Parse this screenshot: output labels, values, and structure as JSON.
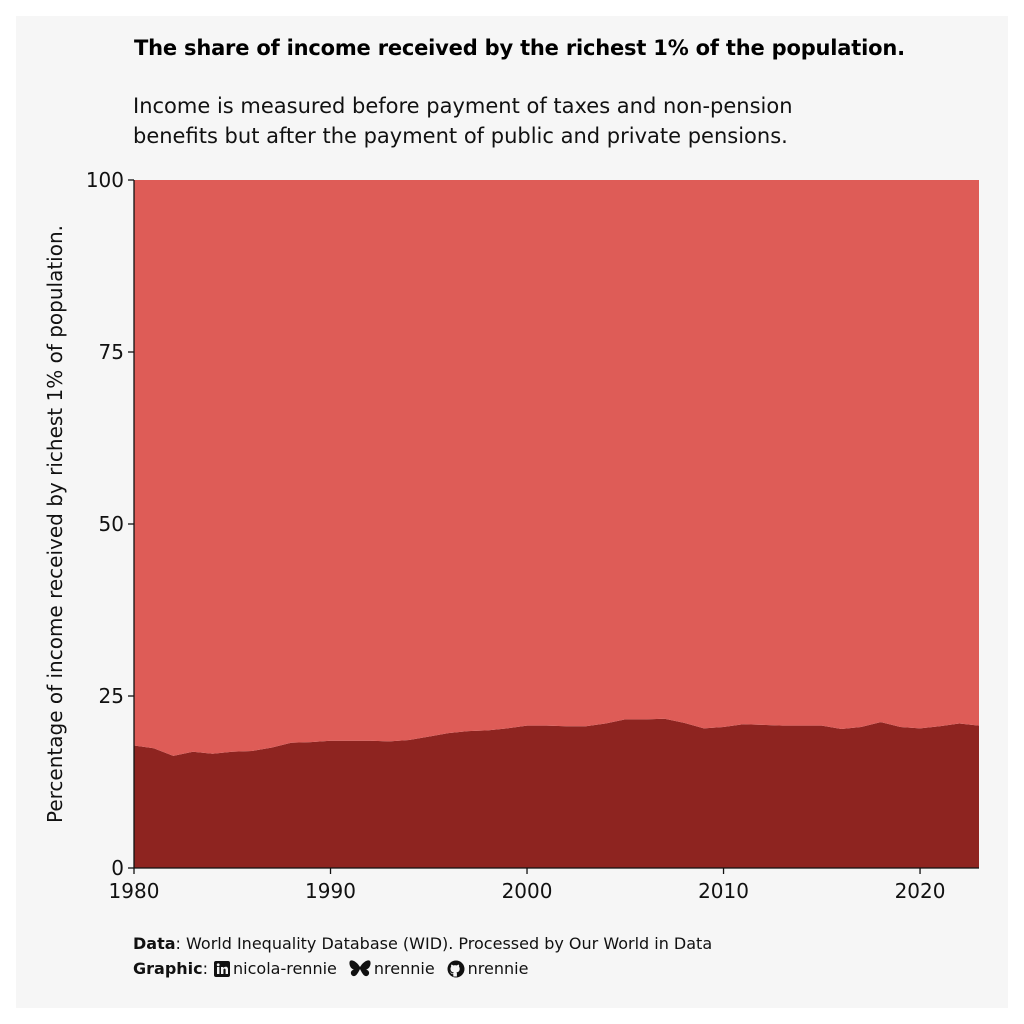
{
  "title": "The share of income received by the richest 1% of the population.",
  "subtitle_lines": [
    "Income is measured before payment of taxes and non-pension",
    "benefits but after the payment of public and private pensions."
  ],
  "caption": {
    "data_label": "Data",
    "data_text": "World Inequality Database (WID). Processed by Our World in Data",
    "graphic_label": "Graphic",
    "linkedin": "nicola-rennie",
    "bluesky": "nrennie",
    "github": "nrennie"
  },
  "colors": {
    "panel_bg": "#f6f6f6",
    "rest": "#de5c57",
    "top1": "#8e2420"
  },
  "icons": [
    "linkedin-icon",
    "butterfly-icon",
    "github-icon"
  ],
  "chart_data": {
    "type": "area",
    "stacked": true,
    "xlabel": "",
    "ylabel": "Percentage of income received by richest 1% of population.",
    "xlim": [
      1980,
      2023
    ],
    "ylim": [
      0,
      100
    ],
    "xticks": [
      1980,
      1990,
      2000,
      2010,
      2020
    ],
    "yticks": [
      0,
      25,
      50,
      75,
      100
    ],
    "grid": false,
    "x": [
      1980,
      1981,
      1982,
      1983,
      1984,
      1985,
      1986,
      1987,
      1988,
      1989,
      1990,
      1991,
      1992,
      1993,
      1994,
      1995,
      1996,
      1997,
      1998,
      1999,
      2000,
      2001,
      2002,
      2003,
      2004,
      2005,
      2006,
      2007,
      2008,
      2009,
      2010,
      2011,
      2012,
      2013,
      2014,
      2015,
      2016,
      2017,
      2018,
      2019,
      2020,
      2021,
      2022,
      2023
    ],
    "series": [
      {
        "values": [
          17.8,
          17.4,
          16.3,
          16.9,
          16.6,
          16.9,
          17.0,
          17.5,
          18.2,
          18.3,
          18.5,
          18.5,
          18.5,
          18.4,
          18.6,
          19.1,
          19.6,
          19.9,
          20.0,
          20.3,
          20.7,
          20.7,
          20.6,
          20.6,
          21.0,
          21.6,
          21.6,
          21.7,
          21.1,
          20.3,
          20.5,
          20.9,
          20.8,
          20.7,
          20.7,
          20.7,
          20.2,
          20.5,
          21.2,
          20.5,
          20.3,
          20.6,
          21.0,
          20.7
        ]
      },
      {
        "values": [
          82.2,
          82.6,
          83.7,
          83.1,
          83.4,
          83.1,
          83.0,
          82.5,
          81.8,
          81.7,
          81.5,
          81.5,
          81.5,
          81.6,
          81.4,
          80.9,
          80.4,
          80.1,
          80.0,
          79.7,
          79.3,
          79.3,
          79.4,
          79.4,
          79.0,
          78.4,
          78.4,
          78.3,
          78.9,
          79.7,
          79.5,
          79.1,
          79.2,
          79.3,
          79.3,
          79.3,
          79.8,
          79.5,
          78.8,
          79.5,
          79.7,
          79.4,
          79.0,
          79.3
        ]
      }
    ]
  }
}
